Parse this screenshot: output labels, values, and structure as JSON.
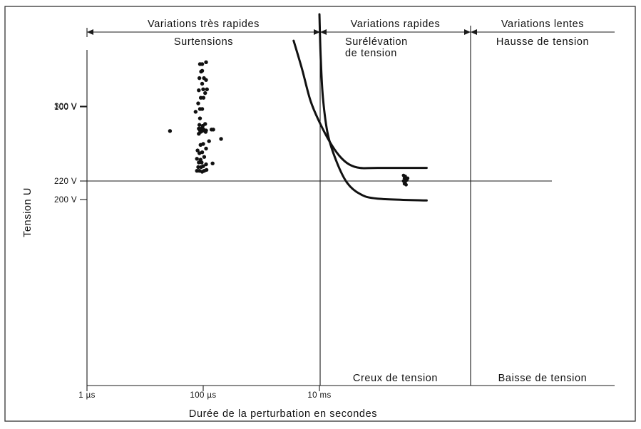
{
  "chart_data": {
    "type": "scatter",
    "xlabel": "Durée de la perturbation en secondes",
    "ylabel": "Tension U",
    "x_scale": "log",
    "x_ticks": [
      {
        "value": 1e-06,
        "label": "1 µs"
      },
      {
        "value": 0.0001,
        "label": "100 µs"
      },
      {
        "value": 0.01,
        "label": "10 ms"
      }
    ],
    "y_ticks": [
      {
        "value": 300,
        "label": "300  V"
      },
      {
        "value": 220,
        "label": "220  V"
      },
      {
        "value": 200,
        "label": "200  V"
      },
      {
        "value": 100,
        "label": "100  V"
      }
    ],
    "y_reference_line": 220,
    "regions": [
      {
        "top_label": "Variations très rapides",
        "upper_label": "Surtensions",
        "lower_label": ""
      },
      {
        "top_label": "Variations rapides",
        "upper_label": "Surélévation\nde tension",
        "lower_label": "Creux de tension"
      },
      {
        "top_label": "Variations lentes",
        "upper_label": "Hausse de tension",
        "lower_label": "Baisse de tension"
      }
    ],
    "scatter_points": [
      {
        "x": 8.8e-05,
        "y": 345
      },
      {
        "x": 9.6e-05,
        "y": 345
      },
      {
        "x": 0.000112,
        "y": 347
      },
      {
        "x": 9.2e-05,
        "y": 337
      },
      {
        "x": 8.6e-05,
        "y": 330
      },
      {
        "x": 0.000103,
        "y": 330
      },
      {
        "x": 0.000112,
        "y": 328
      },
      {
        "x": 9.6e-05,
        "y": 324
      },
      {
        "x": 0.000116,
        "y": 318
      },
      {
        "x": 0.000108,
        "y": 314
      },
      {
        "x": 8.4e-05,
        "y": 317
      },
      {
        "x": 9.1e-05,
        "y": 309
      },
      {
        "x": 0.000101,
        "y": 309
      },
      {
        "x": 8.2e-05,
        "y": 303
      },
      {
        "x": 8.8e-05,
        "y": 297
      },
      {
        "x": 9.6e-05,
        "y": 297
      },
      {
        "x": 7.4e-05,
        "y": 294
      },
      {
        "x": 8.8e-05,
        "y": 287
      },
      {
        "x": 8.6e-05,
        "y": 280
      },
      {
        "x": 9.8e-05,
        "y": 279
      },
      {
        "x": 0.000108,
        "y": 281
      },
      {
        "x": 8.4e-05,
        "y": 276
      },
      {
        "x": 9.2e-05,
        "y": 276
      },
      {
        "x": 0.000101,
        "y": 275
      },
      {
        "x": 8.8e-05,
        "y": 274
      },
      {
        "x": 0.000112,
        "y": 274
      },
      {
        "x": 0.000139,
        "y": 275
      },
      {
        "x": 0.000149,
        "y": 275
      },
      {
        "x": 0.000203,
        "y": 265
      },
      {
        "x": 7.8e-05,
        "y": 169
      },
      {
        "x": 8.6e-05,
        "y": 169
      },
      {
        "x": 9.6e-05,
        "y": 170
      },
      {
        "x": 0.000104,
        "y": 169
      },
      {
        "x": 0.000114,
        "y": 168
      },
      {
        "x": 8.2e-05,
        "y": 165
      },
      {
        "x": 9.2e-05,
        "y": 165
      },
      {
        "x": 0.0001,
        "y": 164
      },
      {
        "x": 0.000112,
        "y": 162
      },
      {
        "x": 8.4e-05,
        "y": 160
      },
      {
        "x": 9.4e-05,
        "y": 160
      },
      {
        "x": 0.000145,
        "y": 161
      },
      {
        "x": 7.8e-05,
        "y": 156
      },
      {
        "x": 9e-05,
        "y": 157
      },
      {
        "x": 0.000104,
        "y": 154
      },
      {
        "x": 8.6e-05,
        "y": 150
      },
      {
        "x": 9.6e-05,
        "y": 149
      },
      {
        "x": 8e-05,
        "y": 147
      },
      {
        "x": 0.000112,
        "y": 145
      },
      {
        "x": 9e-05,
        "y": 141
      },
      {
        "x": 0.0001,
        "y": 140
      },
      {
        "x": 0.000126,
        "y": 137
      },
      {
        "x": 8.4e-05,
        "y": 129
      },
      {
        "x": 9e-05,
        "y": 127
      },
      {
        "x": 9.6e-05,
        "y": 126
      },
      {
        "x": 0.00011,
        "y": 127
      },
      {
        "x": 9.4e-05,
        "y": 124
      },
      {
        "x": 0.0001,
        "y": 124
      },
      {
        "x": 2.68e-05,
        "y": 126
      },
      {
        "x": 0.0001,
        "y": 81
      },
      {
        "x": 9.6e-05,
        "y": 61
      }
    ],
    "slow_variation_cluster": [
      {
        "x": 0.28,
        "y": 226
      },
      {
        "x": 0.3,
        "y": 225
      },
      {
        "x": 0.29,
        "y": 223
      },
      {
        "x": 0.31,
        "y": 222
      },
      {
        "x": 0.28,
        "y": 220
      },
      {
        "x": 0.3,
        "y": 219
      },
      {
        "x": 0.32,
        "y": 221
      },
      {
        "x": 0.29,
        "y": 217
      },
      {
        "x": 0.31,
        "y": 216
      },
      {
        "x": 0.3,
        "y": 224
      },
      {
        "x": 0.33,
        "y": 223
      }
    ],
    "overvoltage_limit_curve": [
      {
        "x": 0.0036,
        "y": 370
      },
      {
        "x": 0.005,
        "y": 340
      },
      {
        "x": 0.007,
        "y": 306
      },
      {
        "x": 0.01,
        "y": 283
      },
      {
        "x": 0.015,
        "y": 262
      },
      {
        "x": 0.022,
        "y": 247
      },
      {
        "x": 0.032,
        "y": 238
      },
      {
        "x": 0.05,
        "y": 234
      },
      {
        "x": 0.1,
        "y": 234
      },
      {
        "x": 0.7,
        "y": 234
      }
    ],
    "undervoltage_limit_curve": [
      {
        "x": 0.01,
        "y": 0
      },
      {
        "x": 0.0105,
        "y": 45
      },
      {
        "x": 0.0115,
        "y": 90
      },
      {
        "x": 0.014,
        "y": 130
      },
      {
        "x": 0.02,
        "y": 160
      },
      {
        "x": 0.03,
        "y": 182
      },
      {
        "x": 0.05,
        "y": 194
      },
      {
        "x": 0.1,
        "y": 199
      },
      {
        "x": 0.7,
        "y": 201
      }
    ]
  }
}
